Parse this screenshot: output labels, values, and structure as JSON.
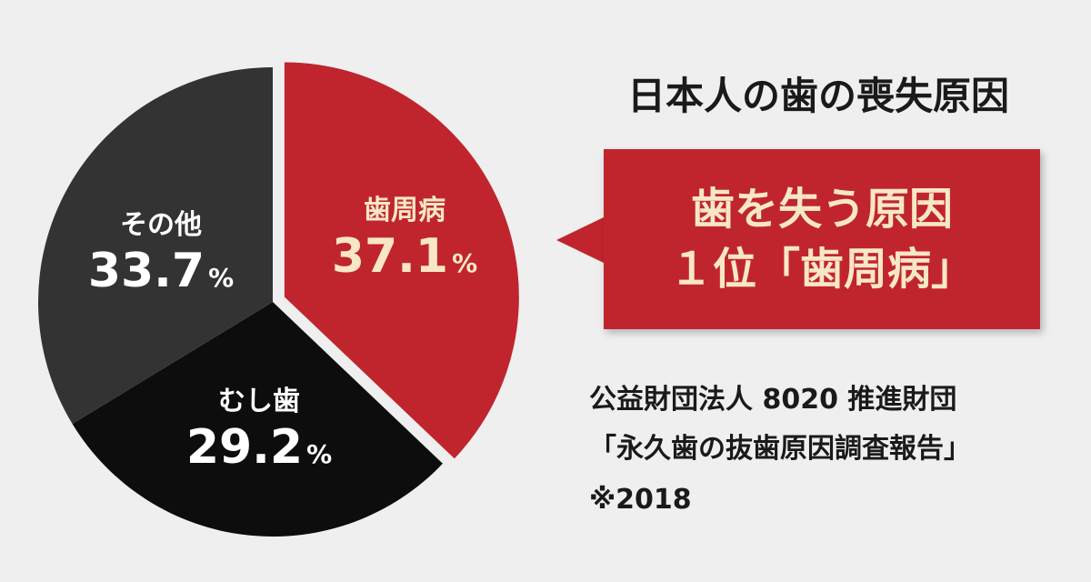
{
  "chart_data": {
    "type": "pie",
    "title": "日本人の歯の喪失原因",
    "unit": "%",
    "slices": [
      {
        "label": "歯周病",
        "value": 37.1,
        "color": "#c0252d",
        "value_text": "37.1"
      },
      {
        "label": "むし歯",
        "value": 29.2,
        "color": "#0d0d0d",
        "value_text": "29.2"
      },
      {
        "label": "その他",
        "value": 33.7,
        "color": "#333333",
        "value_text": "33.7"
      }
    ]
  },
  "callout": {
    "line1": "歯を失う原因",
    "line2": "１位「歯周病」",
    "color": "#c0252d"
  },
  "source": {
    "line1": "公益財団法人 8020 推進財団",
    "line2": "「永久歯の抜歯原因調査報告」",
    "line3": "※2018"
  }
}
